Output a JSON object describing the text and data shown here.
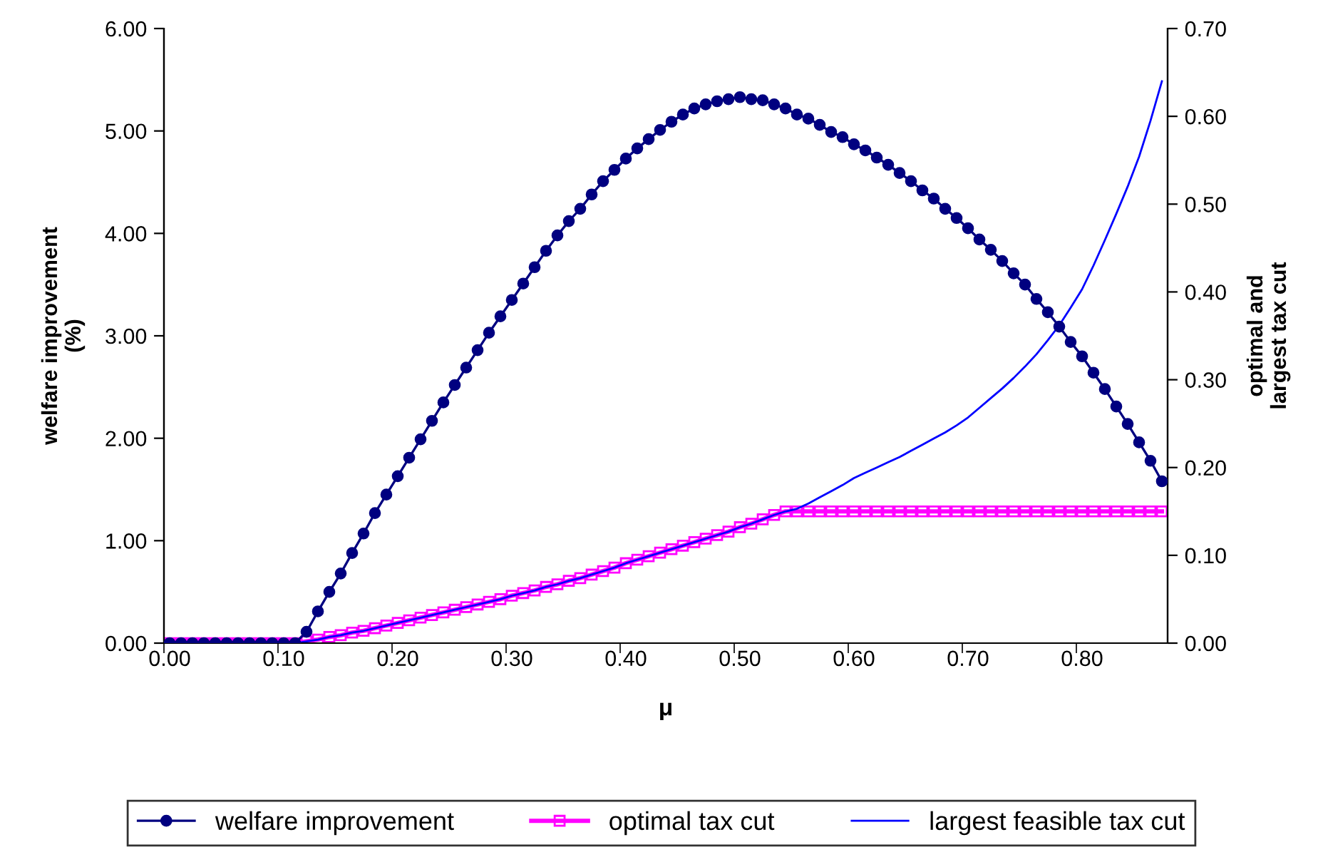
{
  "chart_data": {
    "type": "line",
    "xlabel": "μ",
    "ylabel": "welfare improvement\n(%)",
    "y2label": "optimal and\nlargest tax cut",
    "categories": [
      "0.00",
      null,
      null,
      null,
      null,
      null,
      null,
      null,
      null,
      null,
      "0.10",
      null,
      null,
      null,
      null,
      null,
      null,
      null,
      null,
      null,
      "0.20",
      null,
      null,
      null,
      null,
      null,
      null,
      null,
      null,
      null,
      "0.30",
      null,
      null,
      null,
      null,
      null,
      null,
      null,
      null,
      null,
      "0.40",
      null,
      null,
      null,
      null,
      null,
      null,
      null,
      null,
      null,
      "0.50",
      null,
      null,
      null,
      null,
      null,
      null,
      null,
      null,
      null,
      "0.60",
      null,
      null,
      null,
      null,
      null,
      null,
      null,
      null,
      null,
      "0.70",
      null,
      null,
      null,
      null,
      null,
      null,
      null,
      null,
      null,
      "0.80",
      null,
      null,
      null,
      null,
      null,
      null,
      null
    ],
    "series": [
      {
        "name": "welfare improvement",
        "color": "#000080",
        "marker": "circle",
        "values": [
          0,
          0,
          0,
          0,
          0,
          0,
          0,
          0,
          0,
          0,
          0,
          0,
          0.11,
          0.31,
          0.5,
          0.68,
          0.88,
          1.07,
          1.27,
          1.45,
          1.63,
          1.81,
          1.99,
          2.17,
          2.35,
          2.52,
          2.69,
          2.86,
          3.03,
          3.19,
          3.35,
          3.51,
          3.67,
          3.83,
          3.98,
          4.12,
          4.24,
          4.38,
          4.51,
          4.62,
          4.73,
          4.83,
          4.92,
          5.01,
          5.09,
          5.16,
          5.22,
          5.26,
          5.29,
          5.31,
          5.33,
          5.31,
          5.3,
          5.26,
          5.22,
          5.16,
          5.12,
          5.06,
          4.99,
          4.94,
          4.87,
          4.81,
          4.74,
          4.67,
          4.59,
          4.51,
          4.42,
          4.34,
          4.24,
          4.15,
          4.05,
          3.94,
          3.84,
          3.73,
          3.61,
          3.5,
          3.36,
          3.23,
          3.09,
          2.94,
          2.8,
          2.64,
          2.48,
          2.31,
          2.14,
          1.96,
          1.78,
          1.58
        ]
      },
      {
        "name": "optimal tax cut",
        "color": "#ff00ff",
        "marker": "square",
        "axis": "y2",
        "values": [
          0,
          0,
          0,
          0,
          0,
          0,
          0,
          0,
          0,
          0,
          0,
          0,
          0.002,
          0.004,
          0.007,
          0.009,
          0.012,
          0.014,
          0.017,
          0.02,
          0.023,
          0.026,
          0.029,
          0.032,
          0.035,
          0.038,
          0.041,
          0.044,
          0.047,
          0.05,
          0.054,
          0.057,
          0.06,
          0.064,
          0.067,
          0.071,
          0.074,
          0.078,
          0.082,
          0.086,
          0.091,
          0.095,
          0.099,
          0.103,
          0.107,
          0.111,
          0.115,
          0.119,
          0.123,
          0.127,
          0.132,
          0.136,
          0.141,
          0.146,
          0.15,
          0.15,
          0.15,
          0.15,
          0.15,
          0.15,
          0.15,
          0.15,
          0.15,
          0.15,
          0.15,
          0.15,
          0.15,
          0.15,
          0.15,
          0.15,
          0.15,
          0.15,
          0.15,
          0.15,
          0.15,
          0.15,
          0.15,
          0.15,
          0.15,
          0.15,
          0.15,
          0.15,
          0.15,
          0.15,
          0.15,
          0.15,
          0.15,
          0.15
        ]
      },
      {
        "name": "largest feasible tax cut",
        "color": "#0000ff",
        "marker": "none",
        "axis": "y2",
        "values": [
          null,
          null,
          null,
          null,
          null,
          null,
          null,
          null,
          null,
          null,
          0,
          0,
          0.002,
          0.004,
          0.007,
          0.009,
          0.012,
          0.014,
          0.017,
          0.02,
          0.023,
          0.026,
          0.029,
          0.032,
          0.035,
          0.038,
          0.041,
          0.044,
          0.047,
          0.05,
          0.054,
          0.057,
          0.06,
          0.064,
          0.067,
          0.071,
          0.074,
          0.078,
          0.082,
          0.086,
          0.091,
          0.095,
          0.099,
          0.103,
          0.107,
          0.111,
          0.115,
          0.119,
          0.123,
          0.127,
          0.132,
          0.136,
          0.141,
          0.146,
          0.15,
          0.153,
          0.159,
          0.166,
          0.173,
          0.18,
          0.188,
          0.194,
          0.2,
          0.206,
          0.212,
          0.219,
          0.226,
          0.233,
          0.24,
          0.248,
          0.257,
          0.268,
          0.279,
          0.29,
          0.302,
          0.315,
          0.329,
          0.345,
          0.362,
          0.382,
          0.403,
          0.43,
          0.459,
          0.489,
          0.52,
          0.554,
          0.595,
          0.64
        ]
      }
    ],
    "ylim": [
      0,
      6
    ],
    "yticks": [
      {
        "value": 0,
        "label": "0.00"
      },
      {
        "value": 1,
        "label": "1.00"
      },
      {
        "value": 2,
        "label": "2.00"
      },
      {
        "value": 3,
        "label": "3.00"
      },
      {
        "value": 4,
        "label": "4.00"
      },
      {
        "value": 5,
        "label": "5.00"
      },
      {
        "value": 6,
        "label": "6.00"
      }
    ],
    "y2lim": [
      0,
      0.7
    ],
    "y2ticks": [
      {
        "value": 0,
        "label": "0.00"
      },
      {
        "value": 0.1,
        "label": "0.10"
      },
      {
        "value": 0.2,
        "label": "0.20"
      },
      {
        "value": 0.3,
        "label": "0.30"
      },
      {
        "value": 0.4,
        "label": "0.40"
      },
      {
        "value": 0.5,
        "label": "0.50"
      },
      {
        "value": 0.6,
        "label": "0.60"
      },
      {
        "value": 0.7,
        "label": "0.70"
      }
    ],
    "grid": false,
    "legend": "bottom"
  }
}
